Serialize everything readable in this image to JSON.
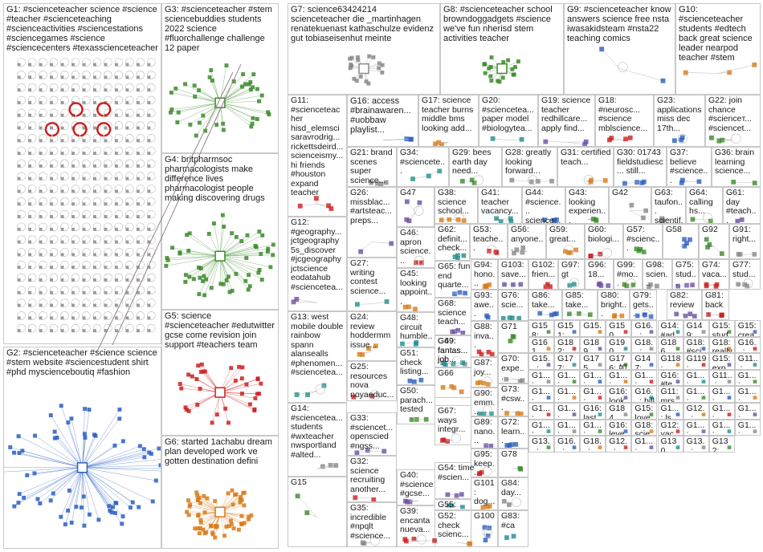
{
  "groups": [
    {
      "id": "G1",
      "label": "G1: #scienceteacher science #science #teacher #scienceteaching #scienceactivities #sciencestations #sciencegames #science #sciencecenters #texasscienceteacher"
    },
    {
      "id": "G2",
      "label": "G2: #scienceteacher #science science #stem website #sciencestudent shirt #phd myscienceboutiq #fashion"
    },
    {
      "id": "G3",
      "label": "G3: #scienceteacher #stem sciencebuddies students 2022 science #fluorchallenge challenge 12 paper"
    },
    {
      "id": "G4",
      "label": "G4: britpharmsoc pharmacologists make difference lives pharmacologist people making discovering drugs"
    },
    {
      "id": "G5",
      "label": "G5: science #scienceteacher #edutwitter gcse come revision join support #teachers team"
    },
    {
      "id": "G6",
      "label": "G6: started 1achabu dream plan developed work ve gotten destination defini"
    },
    {
      "id": "G7",
      "label": "G7: science63424214 scienceteacher die _martinhagen renatekuenast kathaschulze evidenz gut tobiaseisenhut meinte"
    },
    {
      "id": "G8",
      "label": "G8: #scienceteacher school browndoggadgets #science we've fun nherisd stem activities teacher"
    },
    {
      "id": "G9",
      "label": "G9: #scienceteacher know answers science free nsta iwasakidsteam #nsta22 teaching comics"
    },
    {
      "id": "G10",
      "label": "G10: #scienceteacher students #edtech back great science leader nearpod teacher #stem"
    },
    {
      "id": "G11",
      "label": "G11: #scienceteacher hisd_elemsci saravrodrig... rickettsdeird... scienceismy... hi friends #houston expand teacher"
    },
    {
      "id": "G12",
      "label": "G12: #geography... jctgeography 5s_discover #jcgeography jctscience eodatahub #scienceteа..."
    },
    {
      "id": "G13",
      "label": "G13: west mobile double rainbow spann alansealls #phenomen... #scienceteа..."
    },
    {
      "id": "G14",
      "label": "G14: #scienceteа... students #wxteacher nwsportland #alted..."
    },
    {
      "id": "G15",
      "label": "G15"
    },
    {
      "id": "G16",
      "label": "G16: access #brainawaren... #uobbaw playlist..."
    },
    {
      "id": "G17",
      "label": "G17: science teacher burns middle bms looking add..."
    },
    {
      "id": "G18",
      "label": "G18: #neurosc... #science mblscience..."
    },
    {
      "id": "G19",
      "label": "G19: science teacher redhillcare... apply find..."
    },
    {
      "id": "G20",
      "label": "G20: #scienceteа... paper model #biologytea..."
    },
    {
      "id": "G21",
      "label": "G21: brand scenes super science..."
    },
    {
      "id": "G22",
      "label": "G22: join chance #scienceт... #sciencet..."
    },
    {
      "id": "G23",
      "label": "G23: applications miss dec 17th..."
    },
    {
      "id": "G24",
      "label": "G24: review hoddermm issue..."
    },
    {
      "id": "G25",
      "label": "G25: resources nova noyaeduc..."
    },
    {
      "id": "G26",
      "label": "G26: missblac... #artsteac... preps..."
    },
    {
      "id": "G27",
      "label": "G27: writing contest science..."
    },
    {
      "id": "G28",
      "label": "G28: greatly looking forward..."
    },
    {
      "id": "G29",
      "label": "G29: bees earth day need..."
    },
    {
      "id": "G30",
      "label": "G30: 01743 fieldstudiesc... still..."
    },
    {
      "id": "G31",
      "label": "G31: certified teach..."
    },
    {
      "id": "G32",
      "label": "G32: science recruiting another..."
    },
    {
      "id": "G33",
      "label": "G33: #sciencet... openscied #ngss..."
    },
    {
      "id": "G34",
      "label": "G34: #sciencete..."
    },
    {
      "id": "G35",
      "label": "G35: incredible #npqlt #science..."
    },
    {
      "id": "G36",
      "label": "G36: brain learning science..."
    },
    {
      "id": "G37",
      "label": "G37: believe #science..."
    },
    {
      "id": "G38",
      "label": "G38: science school..."
    },
    {
      "id": "G39",
      "label": "G39: encanta nueva..."
    },
    {
      "id": "G40",
      "label": "G40: #science #gcse..."
    },
    {
      "id": "G41",
      "label": "G41: teacher vacancy..."
    },
    {
      "id": "G42",
      "label": "G42"
    },
    {
      "id": "G43",
      "label": "G43: looking experien..."
    },
    {
      "id": "G44",
      "label": "G44: #science... science..."
    },
    {
      "id": "G45",
      "label": "G45: looking appoint..."
    },
    {
      "id": "G46",
      "label": "G46: apron science..."
    },
    {
      "id": "G47",
      "label": "G47"
    },
    {
      "id": "G48",
      "label": "G48: circuit humble..."
    },
    {
      "id": "G49",
      "label": "G49: fantas... job..."
    },
    {
      "id": "G50",
      "label": "G50: parach... tested"
    },
    {
      "id": "G51",
      "label": "G51: check listing..."
    },
    {
      "id": "G52",
      "label": "G52: check scienc..."
    },
    {
      "id": "G53",
      "label": "G53: teache..."
    },
    {
      "id": "G54",
      "label": "G54: time #scien..."
    },
    {
      "id": "G55",
      "label": "G55: borton using..."
    },
    {
      "id": "G56",
      "label": "G56: anyone..."
    },
    {
      "id": "G57",
      "label": "G57: #scienc..."
    },
    {
      "id": "G58",
      "label": "G58"
    },
    {
      "id": "G59",
      "label": "G59: great..."
    },
    {
      "id": "G60",
      "label": "G60: biologi..."
    },
    {
      "id": "G61",
      "label": "G61: day #teach..."
    },
    {
      "id": "G62",
      "label": "G62: definit... check..."
    },
    {
      "id": "G63",
      "label": "G63: taufon... scientif..."
    },
    {
      "id": "G64",
      "label": "G64: calling hs..."
    },
    {
      "id": "G65",
      "label": "G65: fun end quarte..."
    },
    {
      "id": "G66",
      "label": "G66"
    },
    {
      "id": "G67",
      "label": "G67: ways integr..."
    },
    {
      "id": "G68",
      "label": "G68: science teach..."
    },
    {
      "id": "G69",
      "label": "G69: fantas... job..."
    },
    {
      "id": "G70",
      "label": "G70: expe..."
    },
    {
      "id": "G71",
      "label": "G71"
    },
    {
      "id": "G72",
      "label": "G72: learn..."
    },
    {
      "id": "G73",
      "label": "G73: #csw..."
    },
    {
      "id": "G74",
      "label": "G74: vaca..."
    },
    {
      "id": "G75",
      "label": "G75: stud..."
    },
    {
      "id": "G76",
      "label": "G76: scie..."
    },
    {
      "id": "G77",
      "label": "G77: stud..."
    },
    {
      "id": "G78",
      "label": "G78"
    },
    {
      "id": "G79",
      "label": "G79: gets..."
    },
    {
      "id": "G80",
      "label": "G80: bright..."
    },
    {
      "id": "G81",
      "label": "G81: back"
    },
    {
      "id": "G82",
      "label": "G82: review"
    },
    {
      "id": "G83",
      "label": "G83: #ca"
    },
    {
      "id": "G84",
      "label": "G84: day..."
    },
    {
      "id": "G85",
      "label": "G85: take..."
    },
    {
      "id": "G86",
      "label": "G86: take..."
    },
    {
      "id": "G87",
      "label": "G87: joy..."
    },
    {
      "id": "G88",
      "label": "G88: inva..."
    },
    {
      "id": "G89",
      "label": "G89: nano..."
    },
    {
      "id": "G90",
      "label": "G90: emm..."
    },
    {
      "id": "G91",
      "label": "G91: right..."
    },
    {
      "id": "G92",
      "label": "G92"
    },
    {
      "id": "G93",
      "label": "G93: awe..."
    },
    {
      "id": "G94",
      "label": "G94: hono..."
    },
    {
      "id": "G95",
      "label": "G95: keep..."
    },
    {
      "id": "G96",
      "label": "G96: 18..."
    },
    {
      "id": "G97",
      "label": "G97: gt"
    },
    {
      "id": "G98",
      "label": "G98: scien..."
    },
    {
      "id": "G99",
      "label": "G99: #mo..."
    },
    {
      "id": "G100",
      "label": "G100"
    },
    {
      "id": "G101",
      "label": "G101: dog..."
    },
    {
      "id": "G102",
      "label": "G102: frien..."
    },
    {
      "id": "G103",
      "label": "G103: save..."
    }
  ],
  "small_groups": [
    "G158: resp...",
    "G151: job...",
    "G15...",
    "G150",
    "G16...: eyes",
    "G14: #ad...",
    "G149: chec...",
    "G15: stud...",
    "G15: crea...",
    "G161",
    "G182: hey...",
    "G189",
    "G190",
    "G18...: scie...",
    "G186",
    "G18: #sci...",
    "G18: really",
    "G16...: love...",
    "G15...: spe...",
    "G177: visit...",
    "G175",
    "G176: 如果...",
    "G147: utcn...",
    "G118: webi...",
    "G119: stud...",
    "G15: exp...",
    "G11...: thin...",
    "G1...: mor...",
    "G1...: #sc...",
    "G1...: wat...",
    "G1...: #sc...",
    "G1...: gre...",
    "G16: #te...",
    "G1...: ...",
    "G11...: use...",
    "G1...: chri...",
    "G1...: tea...",
    "G1...: #te...",
    "G1...: tod...",
    "G16: look...",
    "G16...: bill",
    "G11: mrs...",
    "G1...: taki...",
    "G1...: vid...",
    "G1...: feel...",
    "G1...: #sc...",
    "G1...: scie...",
    "G16: last...",
    "G184",
    "G15: love",
    "G1...: ls...",
    "G12...: res...",
    "G1...: cat...",
    "G1...: atte...",
    "G1...: #bla...",
    "G1...: #pr...",
    "G1...: #sc...",
    "G16: leve...",
    "G18: scie...",
    "G12: vac...",
    "G1...: #ea...",
    "G1...: yea...",
    "G1...: scie...",
    "G13...: scie...",
    "G16...: weâ...",
    "G18...: scie...",
    "G12...: love...",
    "G1...: #sc...",
    "G130",
    "G13...: welc...",
    "G132:"
  ],
  "colors": {
    "border": "#c8c8c8",
    "node_gray": "#9a9a9a",
    "edge_gray": "#b8b8b8",
    "accent_red": "#cc1f1f",
    "accent_green": "#3c8a2c",
    "accent_blue": "#2a5fbf",
    "accent_orange": "#d97a17"
  }
}
